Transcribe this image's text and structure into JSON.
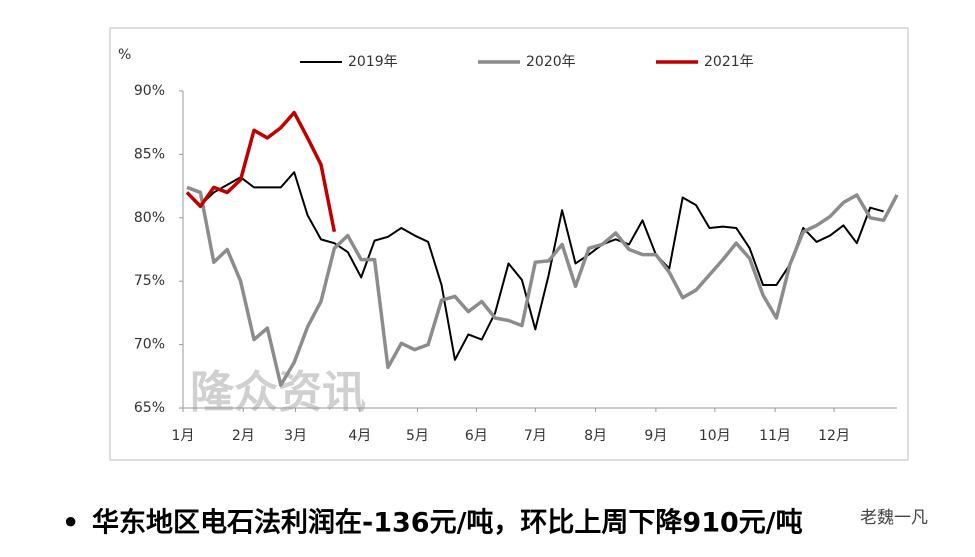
{
  "chart_data": {
    "type": "line",
    "y_axis_label": "%",
    "watermark": "隆众资讯",
    "x": [
      1,
      2,
      3,
      4,
      5,
      6,
      7,
      8,
      9,
      10,
      11,
      12,
      13,
      14,
      15,
      16,
      17,
      18,
      19,
      20,
      21,
      22,
      23,
      24,
      25,
      26,
      27,
      28,
      29,
      30,
      31,
      32,
      33,
      34,
      35,
      36,
      37,
      38,
      39,
      40,
      41,
      42,
      43,
      44,
      45,
      46,
      47,
      48,
      49,
      50,
      51,
      52,
      53,
      54
    ],
    "xlim": [
      0.7,
      54
    ],
    "xticks": [
      {
        "value": 0.7,
        "label": "1月"
      },
      {
        "value": 5.2,
        "label": "2月"
      },
      {
        "value": 9.1,
        "label": "3月"
      },
      {
        "value": 13.9,
        "label": "4月"
      },
      {
        "value": 18.2,
        "label": "5月"
      },
      {
        "value": 22.6,
        "label": "6月"
      },
      {
        "value": 27.0,
        "label": "7月"
      },
      {
        "value": 31.5,
        "label": "8月"
      },
      {
        "value": 36.0,
        "label": "9月"
      },
      {
        "value": 40.4,
        "label": "10月"
      },
      {
        "value": 44.9,
        "label": "11月"
      },
      {
        "value": 49.3,
        "label": "12月"
      }
    ],
    "ylim": [
      65,
      90
    ],
    "yticks": [
      {
        "value": 65,
        "label": "65%"
      },
      {
        "value": 70,
        "label": "70%"
      },
      {
        "value": 75,
        "label": "75%"
      },
      {
        "value": 80,
        "label": "80%"
      },
      {
        "value": 85,
        "label": "85%"
      },
      {
        "value": 90,
        "label": "90%"
      }
    ],
    "grid": false,
    "legend": "top",
    "series": [
      {
        "name": "2019年",
        "color": "#000000",
        "width": 2,
        "values": [
          82.0,
          81.0,
          82.0,
          82.6,
          83.2,
          82.4,
          82.4,
          82.4,
          83.6,
          80.2,
          78.3,
          78.0,
          77.3,
          75.3,
          78.2,
          78.5,
          79.2,
          78.6,
          78.1,
          74.7,
          68.8,
          70.8,
          70.4,
          72.5,
          76.4,
          75.1,
          71.2,
          75.5,
          80.6,
          76.4,
          77.1,
          77.9,
          78.3,
          77.9,
          79.8,
          77.1,
          76.0,
          81.6,
          81.0,
          79.2,
          79.3,
          79.2,
          77.6,
          74.7,
          74.7,
          76.3,
          79.2,
          78.1,
          78.6,
          79.4,
          78.0,
          80.8,
          80.5,
          null
        ]
      },
      {
        "name": "2020年",
        "color": "#8c8c8c",
        "width": 3.5,
        "values": [
          82.4,
          82.0,
          76.5,
          77.5,
          75.0,
          70.4,
          71.3,
          66.8,
          68.6,
          71.4,
          73.4,
          77.6,
          78.6,
          76.7,
          76.7,
          68.2,
          70.1,
          69.6,
          70.0,
          73.5,
          73.8,
          72.6,
          73.4,
          72.1,
          71.9,
          71.5,
          76.5,
          76.6,
          77.9,
          74.6,
          77.6,
          77.9,
          78.8,
          77.5,
          77.1,
          77.1,
          75.7,
          73.7,
          74.3,
          75.5,
          76.7,
          78.0,
          76.8,
          73.9,
          72.1,
          76.3,
          78.9,
          79.4,
          80.1,
          81.2,
          81.8,
          80.0,
          79.8,
          81.8
        ]
      },
      {
        "name": "2021年",
        "color": "#c00000",
        "width": 3.5,
        "values": [
          82.0,
          80.9,
          82.4,
          82.0,
          83.0,
          86.9,
          86.3,
          87.1,
          88.3,
          86.3,
          84.2,
          78.9,
          null,
          null,
          null,
          null,
          null,
          null,
          null,
          null,
          null,
          null,
          null,
          null,
          null,
          null,
          null,
          null,
          null,
          null,
          null,
          null,
          null,
          null,
          null,
          null,
          null,
          null,
          null,
          null,
          null,
          null,
          null,
          null,
          null,
          null,
          null,
          null,
          null,
          null,
          null,
          null,
          null,
          null
        ]
      }
    ]
  },
  "bullet": "•",
  "caption": "华东地区电石法利润在-136元/吨，环比上周下降910元/吨",
  "badge": "老魏一凡"
}
